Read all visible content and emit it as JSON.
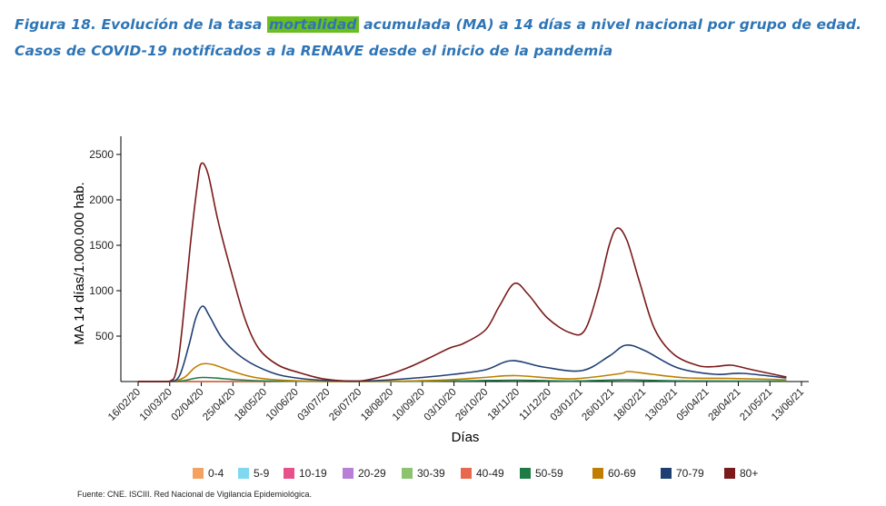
{
  "figure": {
    "title_prefix": "Figura 18. Evolución de la tasa ",
    "title_highlight": "mortalidad",
    "title_suffix": " acumulada (MA) a 14 días a nivel nacional por grupo de edad.",
    "title_line2": "Casos de COVID-19 notificados a la RENAVE desde el inicio de la pandemia",
    "source": "Fuente: CNE. ISCIII. Red Nacional de Vigilancia Epidemiológica.",
    "highlight_color": "#6BBE1E",
    "title_color": "#2E75B6"
  },
  "chart_data": {
    "type": "line",
    "xlabel": "Días",
    "ylabel": "MA 14 días/1.000.000 hab.",
    "ylim": [
      0,
      2700
    ],
    "yticks": [
      500,
      1000,
      1500,
      2000,
      2500
    ],
    "xlim": [
      "2020-02-16",
      "2021-06-13"
    ],
    "xticks": [
      "16/02/20",
      "10/03/20",
      "02/04/20",
      "25/04/20",
      "18/05/20",
      "10/06/20",
      "03/07/20",
      "26/07/20",
      "18/08/20",
      "10/09/20",
      "03/10/20",
      "26/10/20",
      "18/11/20",
      "11/12/20",
      "03/01/21",
      "26/01/21",
      "18/02/21",
      "13/03/21",
      "05/04/21",
      "28/04/21",
      "21/05/21",
      "13/06/21"
    ],
    "grid": false,
    "legend_position": "bottom",
    "series": [
      {
        "name": "0-4",
        "color": "#F4A261",
        "points": [
          [
            "2020-02-16",
            0
          ],
          [
            "2020-05-23",
            0
          ]
        ]
      },
      {
        "name": "5-9",
        "color": "#7FD8F0",
        "points": [
          [
            "2020-02-16",
            0
          ],
          [
            "2020-05-23",
            0
          ]
        ]
      },
      {
        "name": "10-19",
        "color": "#E8508C",
        "points": [
          [
            "2020-02-16",
            0
          ],
          [
            "2020-05-23",
            0
          ]
        ]
      },
      {
        "name": "20-29",
        "color": "#B77FD6",
        "points": [
          [
            "2020-02-16",
            0
          ],
          [
            "2020-05-23",
            0
          ]
        ]
      },
      {
        "name": "30-39",
        "color": "#8DC26F",
        "points": [
          [
            "2020-02-16",
            0
          ],
          [
            "2020-05-23",
            0
          ]
        ]
      },
      {
        "name": "40-49",
        "color": "#E8674F",
        "points": [
          [
            "2020-02-16",
            0
          ],
          [
            "2020-05-23",
            0
          ]
        ]
      },
      {
        "name": "50-59",
        "color": "#1E7B45",
        "points": [
          [
            "2020-02-16",
            0
          ],
          [
            "2020-03-09",
            0
          ],
          [
            "2020-03-20",
            10
          ],
          [
            "2020-03-28",
            35
          ],
          [
            "2020-04-03",
            45
          ],
          [
            "2020-04-13",
            38
          ],
          [
            "2020-04-28",
            20
          ],
          [
            "2020-05-23",
            5
          ],
          [
            "2020-06-30",
            0
          ],
          [
            "2020-08-28",
            2
          ],
          [
            "2020-10-13",
            8
          ],
          [
            "2020-11-17",
            15
          ],
          [
            "2020-12-27",
            6
          ],
          [
            "2021-02-05",
            18
          ],
          [
            "2021-03-12",
            8
          ],
          [
            "2021-06-02",
            5
          ]
        ]
      },
      {
        "name": "60-69",
        "color": "#BF7E00",
        "points": [
          [
            "2020-02-16",
            0
          ],
          [
            "2020-03-09",
            0
          ],
          [
            "2020-03-20",
            40
          ],
          [
            "2020-03-28",
            150
          ],
          [
            "2020-04-03",
            195
          ],
          [
            "2020-04-11",
            185
          ],
          [
            "2020-04-25",
            110
          ],
          [
            "2020-05-13",
            40
          ],
          [
            "2020-06-10",
            8
          ],
          [
            "2020-07-15",
            2
          ],
          [
            "2020-08-25",
            5
          ],
          [
            "2020-09-30",
            20
          ],
          [
            "2020-10-25",
            45
          ],
          [
            "2020-11-17",
            65
          ],
          [
            "2020-12-27",
            30
          ],
          [
            "2021-01-31",
            85
          ],
          [
            "2021-02-07",
            110
          ],
          [
            "2021-02-24",
            80
          ],
          [
            "2021-03-22",
            40
          ],
          [
            "2021-04-21",
            35
          ],
          [
            "2021-06-02",
            20
          ]
        ]
      },
      {
        "name": "70-79",
        "color": "#1F3F73",
        "points": [
          [
            "2020-02-16",
            0
          ],
          [
            "2020-03-09",
            0
          ],
          [
            "2020-03-17",
            60
          ],
          [
            "2020-03-24",
            400
          ],
          [
            "2020-03-29",
            700
          ],
          [
            "2020-04-03",
            830
          ],
          [
            "2020-04-08",
            720
          ],
          [
            "2020-04-18",
            460
          ],
          [
            "2020-05-03",
            250
          ],
          [
            "2020-05-23",
            100
          ],
          [
            "2020-06-10",
            40
          ],
          [
            "2020-07-05",
            10
          ],
          [
            "2020-08-06",
            10
          ],
          [
            "2020-09-10",
            45
          ],
          [
            "2020-10-03",
            80
          ],
          [
            "2020-10-26",
            130
          ],
          [
            "2020-11-14",
            230
          ],
          [
            "2020-12-07",
            160
          ],
          [
            "2021-01-04",
            120
          ],
          [
            "2021-01-24",
            280
          ],
          [
            "2021-02-05",
            400
          ],
          [
            "2021-02-19",
            340
          ],
          [
            "2021-03-15",
            150
          ],
          [
            "2021-04-11",
            80
          ],
          [
            "2021-05-01",
            90
          ],
          [
            "2021-06-02",
            40
          ]
        ]
      },
      {
        "name": "80+",
        "color": "#7A1A1A",
        "points": [
          [
            "2020-02-16",
            0
          ],
          [
            "2020-03-09",
            0
          ],
          [
            "2020-03-15",
            130
          ],
          [
            "2020-03-19",
            580
          ],
          [
            "2020-03-25",
            1500
          ],
          [
            "2020-03-30",
            2150
          ],
          [
            "2020-04-02",
            2400
          ],
          [
            "2020-04-07",
            2280
          ],
          [
            "2020-04-14",
            1780
          ],
          [
            "2020-04-24",
            1200
          ],
          [
            "2020-05-04",
            680
          ],
          [
            "2020-05-14",
            360
          ],
          [
            "2020-05-28",
            180
          ],
          [
            "2020-06-13",
            95
          ],
          [
            "2020-06-28",
            35
          ],
          [
            "2020-07-12",
            10
          ],
          [
            "2020-07-26",
            5
          ],
          [
            "2020-08-13",
            60
          ],
          [
            "2020-08-30",
            150
          ],
          [
            "2020-09-15",
            260
          ],
          [
            "2020-09-30",
            370
          ],
          [
            "2020-10-10",
            420
          ],
          [
            "2020-10-26",
            570
          ],
          [
            "2020-11-05",
            830
          ],
          [
            "2020-11-16",
            1080
          ],
          [
            "2020-11-26",
            960
          ],
          [
            "2020-12-10",
            700
          ],
          [
            "2020-12-26",
            540
          ],
          [
            "2021-01-06",
            560
          ],
          [
            "2021-01-16",
            1000
          ],
          [
            "2021-01-24",
            1500
          ],
          [
            "2021-01-30",
            1690
          ],
          [
            "2021-02-06",
            1550
          ],
          [
            "2021-02-15",
            1100
          ],
          [
            "2021-02-26",
            580
          ],
          [
            "2021-03-12",
            300
          ],
          [
            "2021-03-30",
            175
          ],
          [
            "2021-04-11",
            165
          ],
          [
            "2021-04-23",
            180
          ],
          [
            "2021-05-08",
            130
          ],
          [
            "2021-06-02",
            50
          ]
        ]
      }
    ]
  }
}
